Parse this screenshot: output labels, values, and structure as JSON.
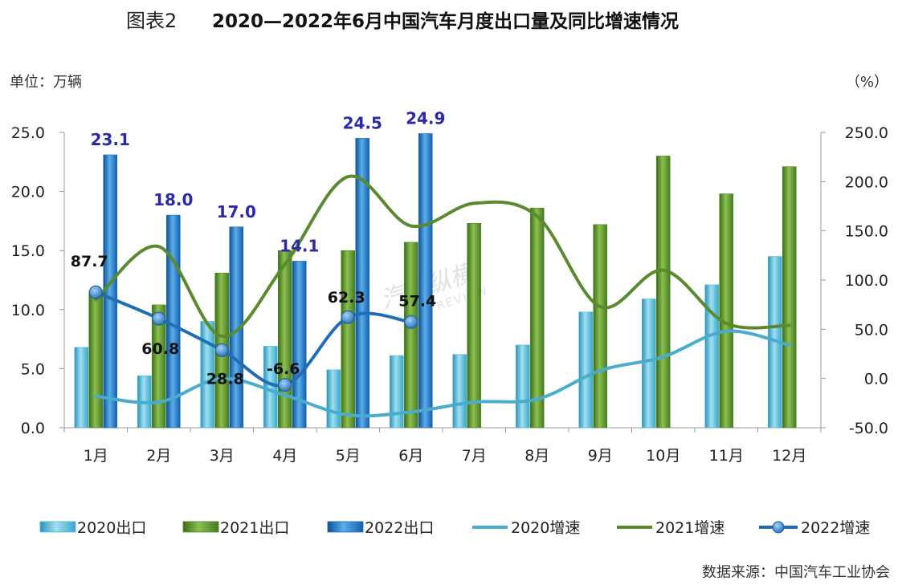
{
  "chart_data": {
    "type": "bar",
    "title_prefix": "图表2",
    "title": "2020—2022年6月中国汽车月度出口量及同比增速情况",
    "left_unit": "单位：万辆",
    "right_unit": "（%）",
    "source": "数据来源：中国汽车工业协会",
    "categories": [
      "1月",
      "2月",
      "3月",
      "4月",
      "5月",
      "6月",
      "7月",
      "8月",
      "9月",
      "10月",
      "11月",
      "12月"
    ],
    "left_axis": {
      "min": 0,
      "max": 25,
      "ticks": [
        "0.0",
        "5.0",
        "10.0",
        "15.0",
        "20.0",
        "25.0"
      ]
    },
    "right_axis": {
      "min": -50,
      "max": 250,
      "ticks": [
        "-50.0",
        "0.0",
        "50.0",
        "100.0",
        "150.0",
        "200.0",
        "250.0"
      ]
    },
    "bar_series": [
      {
        "name": "2020出口",
        "color": "#4fb8d8",
        "values": [
          6.8,
          4.4,
          9.0,
          6.9,
          4.9,
          6.1,
          6.2,
          7.0,
          9.8,
          10.9,
          12.1,
          14.5
        ]
      },
      {
        "name": "2021出口",
        "color": "#4f8a26",
        "values": [
          11.5,
          10.4,
          13.1,
          15.0,
          15.0,
          15.7,
          17.3,
          18.6,
          17.2,
          23.0,
          19.8,
          22.1
        ]
      },
      {
        "name": "2022出口",
        "color": "#1c6cc4",
        "values": [
          23.1,
          18.0,
          17.0,
          14.1,
          24.5,
          24.9
        ],
        "labels": [
          "23.1",
          "18.0",
          "17.0",
          "14.1",
          "24.5",
          "24.9"
        ]
      }
    ],
    "line_series": [
      {
        "name": "2020增速",
        "color": "#4aaccd",
        "values": [
          -18,
          -24,
          0,
          -17,
          -37,
          -34,
          -24,
          -21,
          8,
          22,
          48,
          34
        ]
      },
      {
        "name": "2021增速",
        "color": "#5b8a2e",
        "values": [
          80,
          134,
          43,
          116,
          205,
          155,
          178,
          165,
          73,
          110,
          56,
          54
        ]
      },
      {
        "name": "2022增速",
        "color": "#1f6db5",
        "values": [
          87.7,
          60.8,
          28.8,
          -6.6,
          62.3,
          57.4
        ],
        "labels": [
          "87.7",
          "60.8",
          "28.8",
          "-6.6",
          "62.3",
          "57.4"
        ]
      }
    ],
    "watermark": "汽车纵横",
    "watermark_sub": "AUTO REVIEW",
    "grid": false,
    "legend_position": "bottom"
  }
}
